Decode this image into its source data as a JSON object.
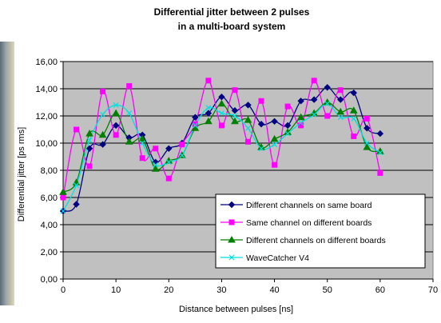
{
  "chart_data": {
    "type": "line",
    "title": "Differential jitter between 2 pulses",
    "subtitle": "in a multi-board system",
    "xlabel": "Distance between pulses [ns]",
    "ylabel": "Differential jitter [ps rms]",
    "xlim": [
      0,
      70
    ],
    "ylim": [
      0,
      16
    ],
    "xticks": [
      0,
      10,
      20,
      30,
      40,
      50,
      60,
      70
    ],
    "yticks": [
      "0,00",
      "2,00",
      "4,00",
      "6,00",
      "8,00",
      "10,00",
      "12,00",
      "14,00",
      "16,00"
    ],
    "grid": true,
    "legend_position": "bottom-right",
    "plot_background": "#c0c0c0",
    "series": [
      {
        "name": "Different channels on same board",
        "color": "#000080",
        "marker": "diamond",
        "x": [
          0,
          2.5,
          5,
          7.5,
          10,
          12.5,
          15,
          17.5,
          20,
          22.5,
          25,
          27.5,
          30,
          32.5,
          35,
          37.5,
          40,
          42.5,
          45,
          47.5,
          50,
          52.5,
          55,
          57.5,
          60
        ],
        "y": [
          5.0,
          5.5,
          9.6,
          9.9,
          11.3,
          10.4,
          10.6,
          8.6,
          9.6,
          10.0,
          11.9,
          12.2,
          13.4,
          12.4,
          12.8,
          11.4,
          11.6,
          11.3,
          13.1,
          13.2,
          14.1,
          13.2,
          13.7,
          11.1,
          10.7
        ]
      },
      {
        "name": "Same channel on different boards",
        "color": "#ff00ff",
        "marker": "square",
        "x": [
          0,
          2.5,
          5,
          7.5,
          10,
          12.5,
          15,
          17.5,
          20,
          22.5,
          25,
          27.5,
          30,
          32.5,
          35,
          37.5,
          40,
          42.5,
          45,
          47.5,
          50,
          52.5,
          55,
          57.5,
          60
        ],
        "y": [
          6.0,
          11.0,
          8.3,
          13.8,
          10.6,
          14.2,
          8.9,
          9.6,
          7.4,
          9.9,
          11.4,
          14.6,
          11.3,
          13.9,
          10.1,
          13.1,
          8.4,
          12.7,
          11.3,
          14.6,
          12.0,
          13.9,
          10.5,
          11.8,
          7.8
        ]
      },
      {
        "name": "Different channels on different boards",
        "color": "#008000",
        "marker": "triangle",
        "x": [
          0,
          2.5,
          5,
          7.5,
          10,
          12.5,
          15,
          17.5,
          20,
          22.5,
          25,
          27.5,
          30,
          32.5,
          35,
          37.5,
          40,
          42.5,
          45,
          47.5,
          50,
          52.5,
          55,
          57.5,
          60
        ],
        "y": [
          6.4,
          7.1,
          10.7,
          10.6,
          12.2,
          10.1,
          10.3,
          8.1,
          8.7,
          9.1,
          11.1,
          11.6,
          12.9,
          11.6,
          11.7,
          9.7,
          10.3,
          10.8,
          11.9,
          12.2,
          13.0,
          12.3,
          12.4,
          9.7,
          9.4
        ]
      },
      {
        "name": "WaveCatcher V4",
        "color": "#00e0e0",
        "marker": "star",
        "x": [
          0,
          2.5,
          5,
          7.5,
          10,
          12.5,
          15,
          17.5,
          20,
          22.5,
          25,
          27.5,
          30,
          32.5,
          35,
          37.5,
          40,
          42.5,
          45,
          47.5,
          50,
          52.5,
          55,
          57.5,
          60
        ],
        "y": [
          5.0,
          6.9,
          10.2,
          12.1,
          12.8,
          12.2,
          10.0,
          8.4,
          8.6,
          9.1,
          11.3,
          12.6,
          12.2,
          12.0,
          11.1,
          9.6,
          9.9,
          10.7,
          11.5,
          12.1,
          12.9,
          11.9,
          11.8,
          10.0,
          9.3
        ]
      }
    ]
  }
}
